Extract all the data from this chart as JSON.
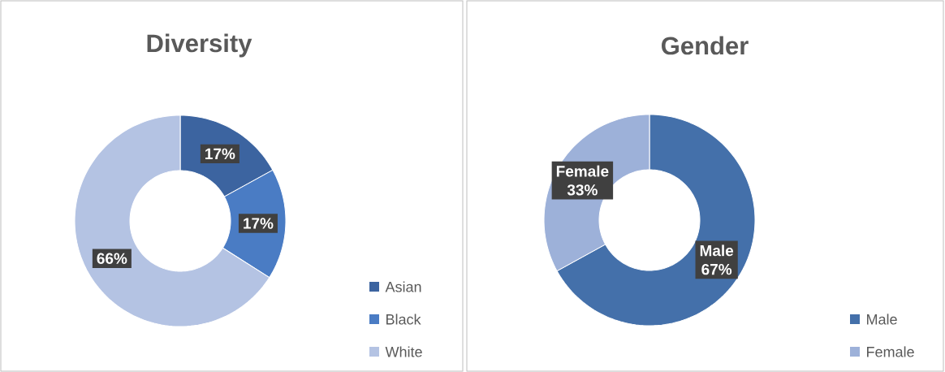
{
  "chart_data": [
    {
      "type": "donut",
      "title": "Diversity",
      "categories": [
        "Asian",
        "Black",
        "White"
      ],
      "values": [
        17,
        17,
        66
      ],
      "colors": [
        "#3c64a0",
        "#4a7cc4",
        "#b4c3e3"
      ],
      "value_labels": [
        "17%",
        "17%",
        "66%"
      ],
      "legend": "bottom right"
    },
    {
      "type": "donut",
      "title": "Gender",
      "categories": [
        "Male",
        "Female"
      ],
      "values": [
        67,
        33
      ],
      "colors": [
        "#4470aa",
        "#9db1d9"
      ],
      "value_labels": [
        "Male 67%",
        "Female 33%"
      ],
      "legend": "bottom right"
    }
  ]
}
